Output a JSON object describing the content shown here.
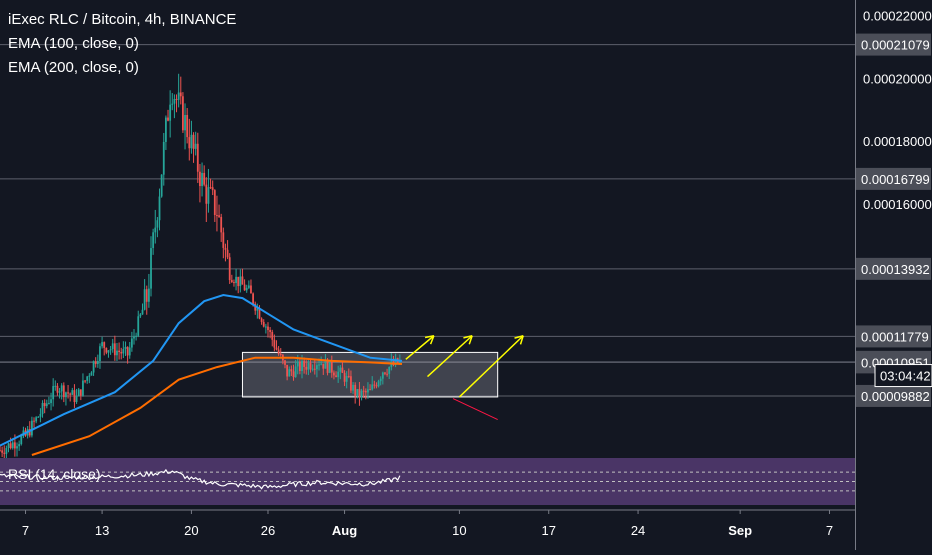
{
  "header": {
    "title": "iExec RLC / Bitcoin, 4h, BINANCE",
    "indicator_1": "EMA (100, close, 0)",
    "indicator_2": "EMA (200, close, 0)",
    "rsi_label": "RSI (14, close)"
  },
  "colors": {
    "background": "#131722",
    "candle_up": "#26a69a",
    "candle_down": "#ef5350",
    "ema100": "#2196f3",
    "ema200": "#ff6d00",
    "arrow": "#ffff00",
    "red_line": "#ff1744",
    "rsi_panel": "#4a3566",
    "rsi_line": "#ffffff"
  },
  "chart_data": {
    "type": "candlestick",
    "timeframe": "4h",
    "ylim": [
      8e-05,
      0.000225
    ],
    "y_ticks": [
      "0.00022000",
      "0.00020000",
      "0.00018000",
      "0.00016000"
    ],
    "price_levels": [
      "0.00021079",
      "0.00016799",
      "0.00013932",
      "0.00011779",
      "0.00010969",
      "0.00010951",
      "0.00009882"
    ],
    "countdown": "03:04:42",
    "x_ticks": [
      "7",
      "13",
      "20",
      "26",
      "Aug",
      "10",
      "17",
      "24",
      "Sep",
      "7"
    ],
    "x_tick_days": [
      7,
      13,
      20,
      26,
      32,
      41,
      48,
      55,
      63,
      70
    ],
    "x_range_days": [
      5,
      72
    ],
    "last_candle_day": 36.5,
    "ohlc_anchors": [
      {
        "day": 5.0,
        "price": 8.15e-05
      },
      {
        "day": 7.0,
        "price": 8.6e-05
      },
      {
        "day": 9.5,
        "price": 0.000102
      },
      {
        "day": 11.0,
        "price": 9.8e-05
      },
      {
        "day": 13.0,
        "price": 0.000115
      },
      {
        "day": 15.0,
        "price": 0.000112
      },
      {
        "day": 16.5,
        "price": 0.00013
      },
      {
        "day": 17.5,
        "price": 0.000165
      },
      {
        "day": 18.4,
        "price": 0.000198
      },
      {
        "day": 19.5,
        "price": 0.000186
      },
      {
        "day": 21.0,
        "price": 0.000165
      },
      {
        "day": 22.0,
        "price": 0.000158
      },
      {
        "day": 23.0,
        "price": 0.000138
      },
      {
        "day": 24.5,
        "price": 0.000132
      },
      {
        "day": 26.0,
        "price": 0.00012
      },
      {
        "day": 27.5,
        "price": 0.000106
      },
      {
        "day": 28.5,
        "price": 0.000108
      },
      {
        "day": 30.0,
        "price": 0.00011
      },
      {
        "day": 32.0,
        "price": 0.000105
      },
      {
        "day": 33.0,
        "price": 9.9e-05
      },
      {
        "day": 34.0,
        "price": 0.0001
      },
      {
        "day": 35.0,
        "price": 0.000107
      },
      {
        "day": 36.5,
        "price": 0.00011
      }
    ],
    "ema100": [
      {
        "day": 5.0,
        "price": 8.3e-05
      },
      {
        "day": 10.0,
        "price": 9.3e-05
      },
      {
        "day": 14.0,
        "price": 0.0001
      },
      {
        "day": 17.0,
        "price": 0.00011
      },
      {
        "day": 19.0,
        "price": 0.000122
      },
      {
        "day": 21.0,
        "price": 0.000129
      },
      {
        "day": 22.5,
        "price": 0.000131
      },
      {
        "day": 24.0,
        "price": 0.00013
      },
      {
        "day": 26.0,
        "price": 0.000125
      },
      {
        "day": 28.0,
        "price": 0.00012
      },
      {
        "day": 30.0,
        "price": 0.000117
      },
      {
        "day": 32.0,
        "price": 0.000114
      },
      {
        "day": 34.0,
        "price": 0.000111
      },
      {
        "day": 36.5,
        "price": 0.00011
      }
    ],
    "ema200": [
      {
        "day": 7.5,
        "price": 8e-05
      },
      {
        "day": 12.0,
        "price": 8.6e-05
      },
      {
        "day": 16.0,
        "price": 9.5e-05
      },
      {
        "day": 19.0,
        "price": 0.000104
      },
      {
        "day": 22.0,
        "price": 0.000108
      },
      {
        "day": 25.0,
        "price": 0.000111
      },
      {
        "day": 28.0,
        "price": 0.000111
      },
      {
        "day": 31.0,
        "price": 0.00011
      },
      {
        "day": 34.0,
        "price": 0.0001095
      },
      {
        "day": 36.5,
        "price": 0.000109
      }
    ],
    "rsi_anchors": [
      {
        "day": 5.0,
        "value": 62
      },
      {
        "day": 9.0,
        "value": 58
      },
      {
        "day": 13.0,
        "value": 60
      },
      {
        "day": 16.0,
        "value": 64
      },
      {
        "day": 18.5,
        "value": 72
      },
      {
        "day": 20.0,
        "value": 55
      },
      {
        "day": 22.0,
        "value": 45
      },
      {
        "day": 24.0,
        "value": 42
      },
      {
        "day": 26.0,
        "value": 38
      },
      {
        "day": 28.0,
        "value": 44
      },
      {
        "day": 30.0,
        "value": 48
      },
      {
        "day": 32.0,
        "value": 46
      },
      {
        "day": 34.0,
        "value": 45
      },
      {
        "day": 35.5,
        "value": 52
      },
      {
        "day": 36.5,
        "value": 60
      }
    ],
    "rsi_bands": [
      70,
      50,
      30
    ],
    "drawings": {
      "consolidation_box": {
        "day_start": 24.0,
        "day_end": 44.0,
        "price_top": 0.0001127,
        "price_bottom": 9.85e-05
      },
      "arrows": [
        {
          "from_day": 36.8,
          "from_price": 0.0001105,
          "to_day": 39.0,
          "to_price": 0.000118
        },
        {
          "from_day": 38.5,
          "from_price": 0.000105,
          "to_day": 42.0,
          "to_price": 0.000118
        },
        {
          "from_day": 41.0,
          "from_price": 9.85e-05,
          "to_day": 46.0,
          "to_price": 0.000118
        }
      ],
      "red_line": {
        "from_day": 40.5,
        "from_price": 9.8e-05,
        "to_day": 44.0,
        "to_price": 9.13e-05
      }
    }
  }
}
